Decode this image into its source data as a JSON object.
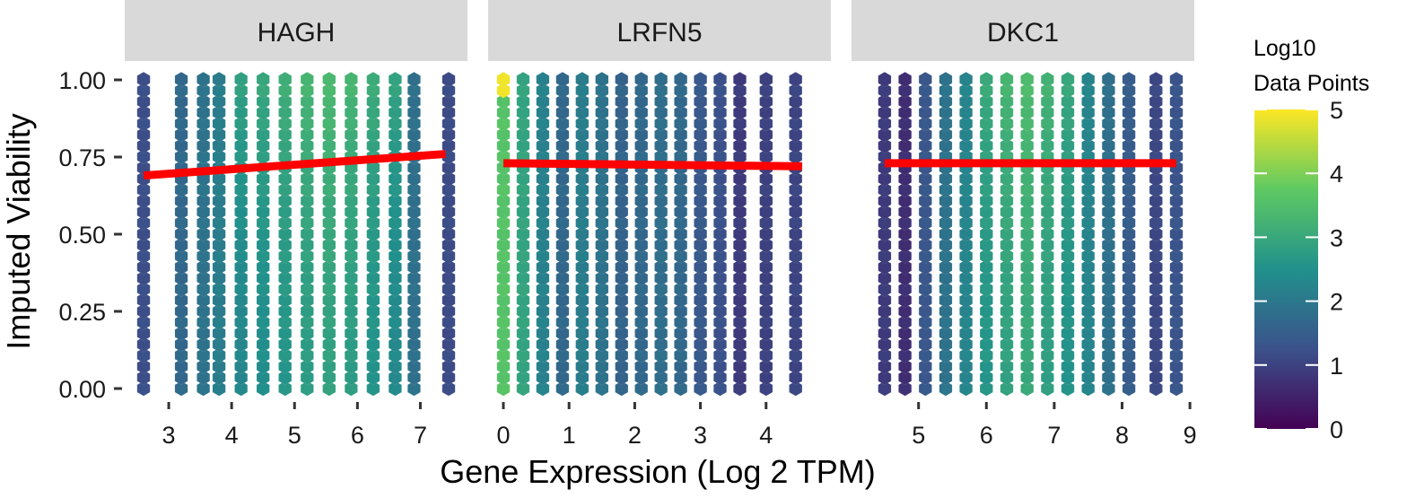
{
  "chart_data": {
    "type": "hexbin",
    "ylabel": "Imputed Viability",
    "xlabel": "Gene Expression (Log 2 TPM)",
    "ylim": [
      0.0,
      1.0
    ],
    "yticks": [
      "0.00",
      "0.25",
      "0.50",
      "0.75",
      "1.00"
    ],
    "ytick_values": [
      0.0,
      0.25,
      0.5,
      0.75,
      1.0
    ],
    "legend": {
      "title": "Log10\nData Points",
      "title_lines": [
        "Log10",
        "Data Points"
      ],
      "min": 0,
      "max": 5,
      "ticks": [
        0,
        1,
        2,
        3,
        4,
        5
      ],
      "colors": [
        "#440154",
        "#3b528b",
        "#21918c",
        "#5ec962",
        "#fde725"
      ],
      "placement": "right"
    },
    "regression_color": "#ff0000",
    "panels": [
      {
        "label": "HAGH",
        "xlim": [
          2.6,
          7.45
        ],
        "xticks": [
          3,
          4,
          5,
          6,
          7
        ],
        "fit_line": {
          "x": [
            2.6,
            7.4
          ],
          "y": [
            0.69,
            0.76
          ]
        },
        "columns": [
          {
            "x": 2.6,
            "d": 1.2
          },
          {
            "x": 3.2,
            "d": 1.7
          },
          {
            "x": 3.55,
            "d": 1.9
          },
          {
            "x": 3.8,
            "d": 2.1
          },
          {
            "x": 4.15,
            "d": 2.3
          },
          {
            "x": 4.5,
            "d": 2.45
          },
          {
            "x": 4.85,
            "d": 2.6
          },
          {
            "x": 5.2,
            "d": 2.75
          },
          {
            "x": 5.55,
            "d": 2.85
          },
          {
            "x": 5.9,
            "d": 2.75
          },
          {
            "x": 6.25,
            "d": 2.55
          },
          {
            "x": 6.6,
            "d": 2.35
          },
          {
            "x": 6.9,
            "d": 1.85
          },
          {
            "x": 7.45,
            "d": 1.15
          }
        ]
      },
      {
        "label": "LRFN5",
        "xlim": [
          0.0,
          4.7
        ],
        "xticks": [
          0,
          1,
          2,
          3,
          4
        ],
        "fit_line": {
          "x": [
            0.0,
            4.55
          ],
          "y": [
            0.73,
            0.72
          ]
        },
        "columns": [
          {
            "x": 0.0,
            "d": 3.6
          },
          {
            "x": 0.3,
            "d": 2.9
          },
          {
            "x": 0.6,
            "d": 2.2
          },
          {
            "x": 0.9,
            "d": 1.7
          },
          {
            "x": 1.2,
            "d": 2.1
          },
          {
            "x": 1.5,
            "d": 1.9
          },
          {
            "x": 1.8,
            "d": 1.6
          },
          {
            "x": 2.1,
            "d": 1.7
          },
          {
            "x": 2.4,
            "d": 1.8
          },
          {
            "x": 2.7,
            "d": 1.7
          },
          {
            "x": 3.0,
            "d": 1.4
          },
          {
            "x": 3.3,
            "d": 1.25
          },
          {
            "x": 3.6,
            "d": 0.9
          },
          {
            "x": 4.0,
            "d": 1.0
          },
          {
            "x": 4.45,
            "d": 1.05
          }
        ]
      },
      {
        "label": "DKC1",
        "xlim": [
          4.25,
          8.8
        ],
        "xticks": [
          5,
          6,
          7,
          8,
          9
        ],
        "fit_line": {
          "x": [
            4.5,
            8.8
          ],
          "y": [
            0.73,
            0.73
          ]
        },
        "columns": [
          {
            "x": 4.5,
            "d": 0.9
          },
          {
            "x": 4.8,
            "d": 0.7
          },
          {
            "x": 5.1,
            "d": 1.35
          },
          {
            "x": 5.4,
            "d": 1.9
          },
          {
            "x": 5.7,
            "d": 2.25
          },
          {
            "x": 6.0,
            "d": 2.6
          },
          {
            "x": 6.3,
            "d": 2.85
          },
          {
            "x": 6.6,
            "d": 3.0
          },
          {
            "x": 6.9,
            "d": 2.8
          },
          {
            "x": 7.2,
            "d": 2.55
          },
          {
            "x": 7.5,
            "d": 2.25
          },
          {
            "x": 7.8,
            "d": 1.85
          },
          {
            "x": 8.1,
            "d": 1.45
          },
          {
            "x": 8.5,
            "d": 1.1
          },
          {
            "x": 8.8,
            "d": 1.3
          }
        ]
      }
    ]
  }
}
